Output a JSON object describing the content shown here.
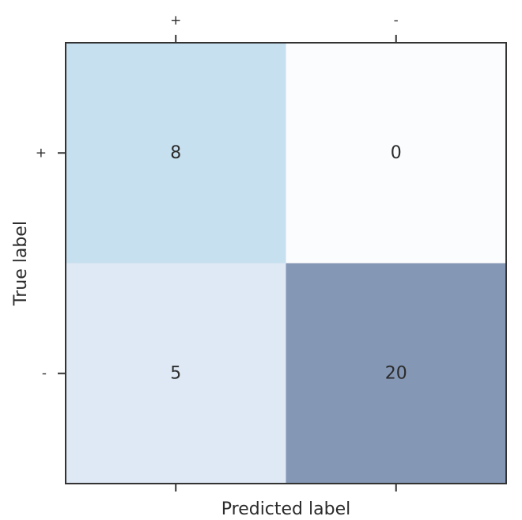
{
  "chart_data": {
    "type": "heatmap",
    "title": "",
    "xlabel": "Predicted label",
    "ylabel": "True label",
    "x_categories": [
      "+",
      "-"
    ],
    "y_categories": [
      "+",
      "-"
    ],
    "values": [
      [
        8,
        0
      ],
      [
        5,
        20
      ]
    ],
    "colormap": "Blues",
    "cell_colors": [
      [
        "#c7e0ef",
        "#fbfcfe"
      ],
      [
        "#dfe9f5",
        "#8497b5"
      ]
    ],
    "grid": false,
    "x_ticks_top_and_bottom": true,
    "x_tick_labels_position": "top"
  }
}
